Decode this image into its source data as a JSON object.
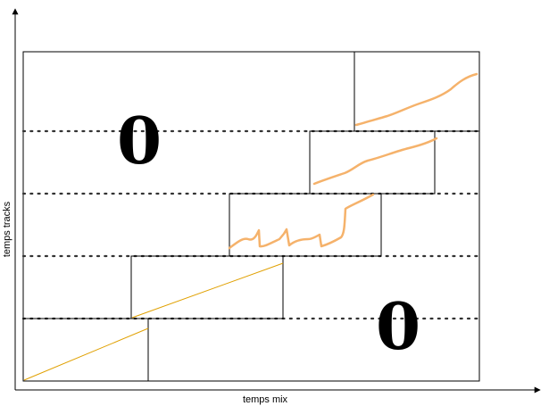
{
  "axes": {
    "x_label": "temps mix",
    "y_label": "temps tracks"
  },
  "regions": {
    "upper_left_label": "0",
    "lower_right_label": "0"
  },
  "colors": {
    "line": "#000000",
    "dotted": "#333333",
    "orange_stroke": "#f5b26b",
    "yellow_stroke": "#e0a000"
  }
}
